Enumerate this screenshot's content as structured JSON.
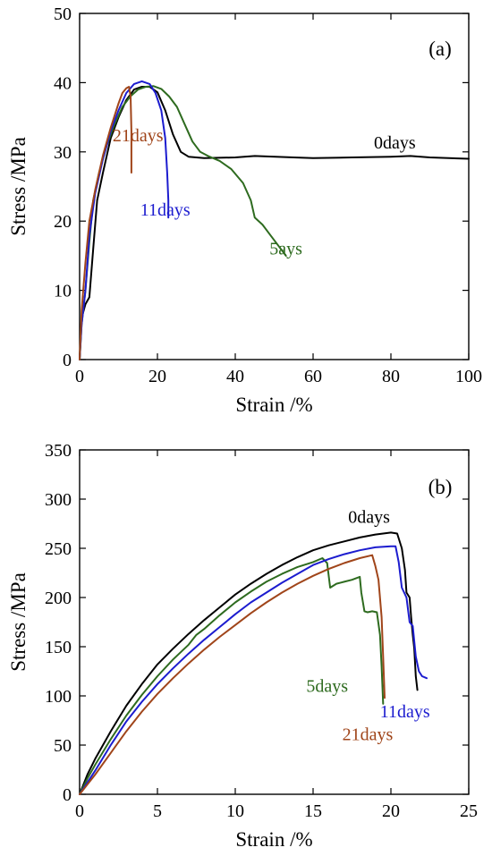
{
  "chart_data": [
    {
      "type": "line",
      "panel_label": "(a)",
      "xlabel": "Strain /%",
      "ylabel": "Stress /MPa",
      "xlim": [
        0,
        100
      ],
      "ylim": [
        0,
        50
      ],
      "xticks": [
        0,
        20,
        40,
        60,
        80,
        100
      ],
      "yticks": [
        0,
        10,
        20,
        30,
        40,
        50
      ],
      "grid": false,
      "series": [
        {
          "name": "0days",
          "color": "#000000",
          "points": [
            [
              0,
              0
            ],
            [
              0.5,
              6
            ],
            [
              1.5,
              8
            ],
            [
              2.5,
              9
            ],
            [
              3.5,
              16
            ],
            [
              4.5,
              23
            ],
            [
              6,
              27
            ],
            [
              8,
              32
            ],
            [
              10,
              35
            ],
            [
              12,
              37.5
            ],
            [
              14,
              39
            ],
            [
              16,
              39.4
            ],
            [
              18,
              39.4
            ],
            [
              20,
              38.6
            ],
            [
              22,
              36
            ],
            [
              24,
              32.5
            ],
            [
              26,
              30
            ],
            [
              28,
              29.3
            ],
            [
              32,
              29.1
            ],
            [
              40,
              29.2
            ],
            [
              45,
              29.4
            ],
            [
              55,
              29.2
            ],
            [
              60,
              29.1
            ],
            [
              70,
              29.2
            ],
            [
              80,
              29.3
            ],
            [
              85,
              29.4
            ],
            [
              90,
              29.2
            ],
            [
              100,
              29
            ]
          ]
        },
        {
          "name": "5ays",
          "color": "#2e6b1f",
          "points": [
            [
              0,
              0
            ],
            [
              0.5,
              5
            ],
            [
              1.5,
              10
            ],
            [
              2.5,
              17
            ],
            [
              3.5,
              23
            ],
            [
              5,
              27
            ],
            [
              7,
              31
            ],
            [
              9,
              34
            ],
            [
              11,
              36.5
            ],
            [
              13,
              38
            ],
            [
              15,
              39
            ],
            [
              17,
              39.4
            ],
            [
              19,
              39.5
            ],
            [
              21,
              39.1
            ],
            [
              23,
              38
            ],
            [
              25,
              36.5
            ],
            [
              27,
              34
            ],
            [
              29,
              31.5
            ],
            [
              31,
              30
            ],
            [
              33,
              29.4
            ],
            [
              36,
              28.7
            ],
            [
              39,
              27.5
            ],
            [
              42,
              25.5
            ],
            [
              44,
              23
            ],
            [
              45,
              20.5
            ],
            [
              47,
              19.5
            ],
            [
              49,
              18
            ],
            [
              51,
              16.5
            ],
            [
              53,
              15
            ]
          ]
        },
        {
          "name": "11days",
          "color": "#1c1ccf",
          "points": [
            [
              0,
              0
            ],
            [
              0.5,
              5
            ],
            [
              1.5,
              10
            ],
            [
              2.5,
              18
            ],
            [
              4,
              24
            ],
            [
              6,
              29
            ],
            [
              8,
              33
            ],
            [
              10,
              36
            ],
            [
              12,
              38.5
            ],
            [
              14,
              39.8
            ],
            [
              16,
              40.2
            ],
            [
              18,
              39.8
            ],
            [
              19.5,
              38.5
            ],
            [
              21,
              36
            ],
            [
              22,
              32
            ],
            [
              22.5,
              27
            ],
            [
              22.8,
              23
            ],
            [
              22.8,
              20.5
            ]
          ]
        },
        {
          "name": "21days",
          "color": "#a0451a",
          "points": [
            [
              0,
              0
            ],
            [
              0.5,
              7
            ],
            [
              1.5,
              14
            ],
            [
              2.5,
              20
            ],
            [
              4,
              24.5
            ],
            [
              6,
              29.5
            ],
            [
              8,
              33.5
            ],
            [
              10,
              37
            ],
            [
              11,
              38.5
            ],
            [
              12,
              39.2
            ],
            [
              12.7,
              39.4
            ],
            [
              13.1,
              38
            ],
            [
              13.3,
              33
            ],
            [
              13.3,
              27
            ]
          ]
        }
      ],
      "annotations": [
        {
          "text": "0days",
          "series": "0days",
          "x": 81,
          "y": 30.5
        },
        {
          "text": "21days",
          "series": "21days",
          "x": 15,
          "y": 31.5
        },
        {
          "text": "11days",
          "series": "11days",
          "x": 22,
          "y": 20.8
        },
        {
          "text": "5ays",
          "series": "5ays",
          "x": 53,
          "y": 15.2
        }
      ]
    },
    {
      "type": "line",
      "panel_label": "(b)",
      "xlabel": "Strain /%",
      "ylabel": "Stress /MPa",
      "xlim": [
        0,
        25
      ],
      "ylim": [
        0,
        350
      ],
      "xticks": [
        0,
        5,
        10,
        15,
        20,
        25
      ],
      "yticks": [
        0,
        50,
        100,
        150,
        200,
        250,
        300,
        350
      ],
      "grid": false,
      "series": [
        {
          "name": "0days",
          "color": "#000000",
          "points": [
            [
              0,
              0
            ],
            [
              0.5,
              20
            ],
            [
              1,
              36
            ],
            [
              2,
              64
            ],
            [
              3,
              90
            ],
            [
              4,
              112
            ],
            [
              5,
              132
            ],
            [
              6,
              148
            ],
            [
              7,
              163
            ],
            [
              8,
              177
            ],
            [
              9,
              190
            ],
            [
              10,
              203
            ],
            [
              11,
              214
            ],
            [
              12,
              224
            ],
            [
              13,
              233
            ],
            [
              14,
              241
            ],
            [
              15,
              248
            ],
            [
              16,
              253
            ],
            [
              17,
              257
            ],
            [
              18,
              261
            ],
            [
              19,
              264
            ],
            [
              20,
              266
            ],
            [
              20.4,
              265
            ],
            [
              20.7,
              250
            ],
            [
              20.9,
              228
            ],
            [
              21,
              205
            ],
            [
              21.2,
              200
            ],
            [
              21.3,
              180
            ],
            [
              21.4,
              162
            ],
            [
              21.5,
              148
            ],
            [
              21.6,
              120
            ],
            [
              21.7,
              106
            ]
          ]
        },
        {
          "name": "5days",
          "color": "#2e6b1f",
          "points": [
            [
              0,
              0
            ],
            [
              0.5,
              16
            ],
            [
              1,
              30
            ],
            [
              2,
              56
            ],
            [
              3,
              80
            ],
            [
              4,
              101
            ],
            [
              5,
              120
            ],
            [
              6,
              137
            ],
            [
              7,
              152
            ],
            [
              7.5,
              162
            ],
            [
              8,
              168
            ],
            [
              9,
              182
            ],
            [
              10,
              195
            ],
            [
              11,
              206
            ],
            [
              12,
              216
            ],
            [
              13,
              224
            ],
            [
              14,
              231
            ],
            [
              15,
              236
            ],
            [
              15.6,
              240
            ],
            [
              15.9,
              235
            ],
            [
              16.1,
              210
            ],
            [
              16.5,
              214
            ],
            [
              17,
              216
            ],
            [
              17.5,
              218
            ],
            [
              18,
              221
            ],
            [
              18.1,
              205
            ],
            [
              18.3,
              186
            ],
            [
              18.5,
              185
            ],
            [
              18.8,
              186
            ],
            [
              19.1,
              185
            ],
            [
              19.3,
              162
            ],
            [
              19.4,
              130
            ],
            [
              19.5,
              92
            ]
          ]
        },
        {
          "name": "11days",
          "color": "#1c1ccf",
          "points": [
            [
              0,
              0
            ],
            [
              0.5,
              12
            ],
            [
              1,
              24
            ],
            [
              2,
              50
            ],
            [
              3,
              74
            ],
            [
              4,
              94
            ],
            [
              5,
              112
            ],
            [
              6,
              128
            ],
            [
              7,
              143
            ],
            [
              8,
              157
            ],
            [
              9,
              170
            ],
            [
              10,
              183
            ],
            [
              11,
              195
            ],
            [
              12,
              205
            ],
            [
              13,
              215
            ],
            [
              14,
              224
            ],
            [
              15,
              233
            ],
            [
              16,
              239
            ],
            [
              17,
              244
            ],
            [
              18,
              248
            ],
            [
              19,
              251
            ],
            [
              20,
              252
            ],
            [
              20.3,
              252
            ],
            [
              20.5,
              236
            ],
            [
              20.7,
              210
            ],
            [
              21,
              200
            ],
            [
              21.2,
              175
            ],
            [
              21.4,
              171
            ],
            [
              21.6,
              140
            ],
            [
              21.8,
              125
            ],
            [
              22,
              120
            ],
            [
              22.3,
              118
            ]
          ]
        },
        {
          "name": "21days",
          "color": "#a0451a",
          "points": [
            [
              0,
              0
            ],
            [
              0.5,
              10
            ],
            [
              1,
              20
            ],
            [
              2,
              42
            ],
            [
              3,
              64
            ],
            [
              4,
              84
            ],
            [
              5,
              102
            ],
            [
              6,
              118
            ],
            [
              7,
              133
            ],
            [
              8,
              147
            ],
            [
              9,
              160
            ],
            [
              10,
              172
            ],
            [
              11,
              184
            ],
            [
              12,
              195
            ],
            [
              13,
              205
            ],
            [
              14,
              214
            ],
            [
              15,
              222
            ],
            [
              16,
              229
            ],
            [
              17,
              235
            ],
            [
              18,
              240
            ],
            [
              18.8,
              243
            ],
            [
              19,
              232
            ],
            [
              19.2,
              218
            ],
            [
              19.4,
              180
            ],
            [
              19.5,
              140
            ],
            [
              19.6,
              98
            ]
          ]
        }
      ],
      "annotations": [
        {
          "text": "0days",
          "series": "0days",
          "x": 18.6,
          "y": 276
        },
        {
          "text": "5days",
          "series": "5days",
          "x": 15.9,
          "y": 104
        },
        {
          "text": "11days",
          "series": "11days",
          "x": 20.9,
          "y": 78
        },
        {
          "text": "21days",
          "series": "21days",
          "x": 18.5,
          "y": 55
        }
      ]
    }
  ]
}
